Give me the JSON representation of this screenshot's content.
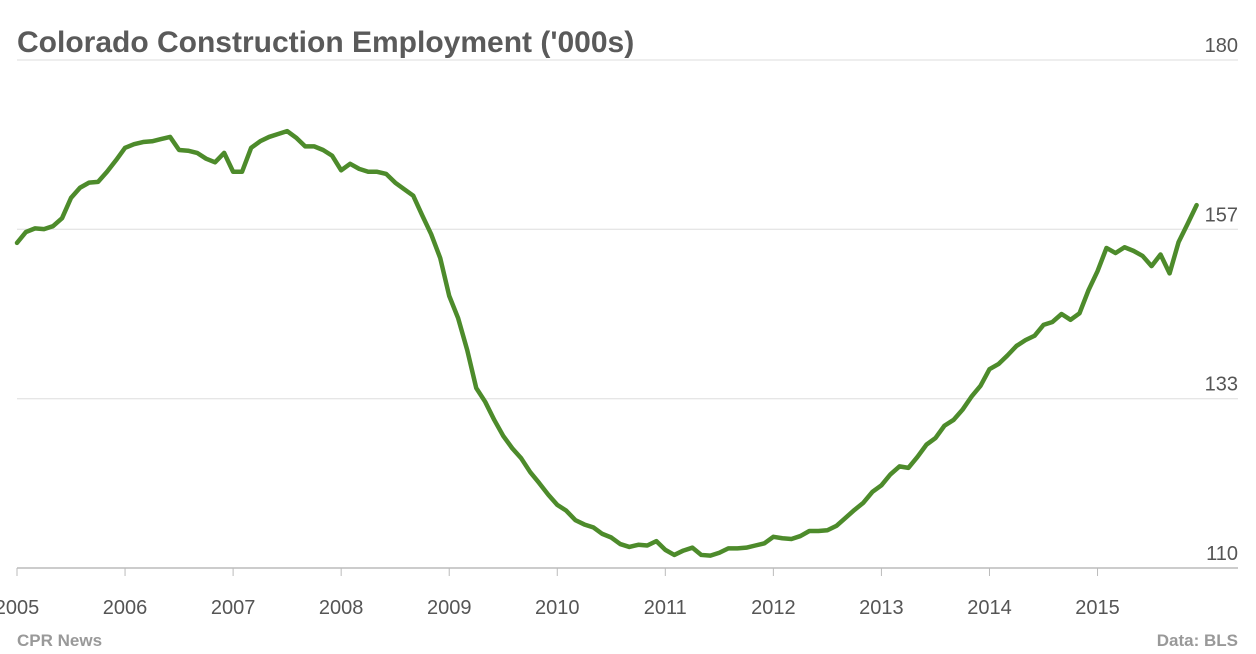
{
  "chart_data": {
    "type": "line",
    "title": "Colorado Construction Employment ('000s)",
    "source_left": "CPR News",
    "source_right": "Data: BLS",
    "x": [
      2005,
      2005.083,
      2005.167,
      2005.25,
      2005.333,
      2005.417,
      2005.5,
      2005.583,
      2005.667,
      2005.75,
      2005.833,
      2005.917,
      2006,
      2006.083,
      2006.167,
      2006.25,
      2006.333,
      2006.417,
      2006.5,
      2006.583,
      2006.667,
      2006.75,
      2006.833,
      2006.917,
      2007,
      2007.083,
      2007.167,
      2007.25,
      2007.333,
      2007.417,
      2007.5,
      2007.583,
      2007.667,
      2007.75,
      2007.833,
      2007.917,
      2008,
      2008.083,
      2008.167,
      2008.25,
      2008.333,
      2008.417,
      2008.5,
      2008.583,
      2008.667,
      2008.75,
      2008.833,
      2008.917,
      2009,
      2009.083,
      2009.167,
      2009.25,
      2009.333,
      2009.417,
      2009.5,
      2009.583,
      2009.667,
      2009.75,
      2009.833,
      2009.917,
      2010,
      2010.083,
      2010.167,
      2010.25,
      2010.333,
      2010.417,
      2010.5,
      2010.583,
      2010.667,
      2010.75,
      2010.833,
      2010.917,
      2011,
      2011.083,
      2011.167,
      2011.25,
      2011.333,
      2011.417,
      2011.5,
      2011.583,
      2011.667,
      2011.75,
      2011.833,
      2011.917,
      2012,
      2012.083,
      2012.167,
      2012.25,
      2012.333,
      2012.417,
      2012.5,
      2012.583,
      2012.667,
      2012.75,
      2012.833,
      2012.917,
      2013,
      2013.083,
      2013.167,
      2013.25,
      2013.333,
      2013.417,
      2013.5,
      2013.583,
      2013.667,
      2013.75,
      2013.833,
      2013.917,
      2014,
      2014.083,
      2014.167,
      2014.25,
      2014.333,
      2014.417,
      2014.5,
      2014.583,
      2014.667,
      2014.75,
      2014.833,
      2014.917,
      2015,
      2015.083,
      2015.167,
      2015.25,
      2015.333,
      2015.417,
      2015.5,
      2015.583,
      2015.667,
      2015.75,
      2015.833,
      2015.917
    ],
    "series": [
      {
        "name": "Construction employment",
        "color": "#4d8b2b",
        "values": [
          154.8,
          156.3,
          156.8,
          156.7,
          157.1,
          158.2,
          161.0,
          162.4,
          163.1,
          163.2,
          164.6,
          166.2,
          167.9,
          168.4,
          168.7,
          168.8,
          169.1,
          169.4,
          167.6,
          167.5,
          167.2,
          166.4,
          165.9,
          167.2,
          164.6,
          164.6,
          167.9,
          168.8,
          169.4,
          169.8,
          170.2,
          169.3,
          168.1,
          168.1,
          167.6,
          166.8,
          164.8,
          165.7,
          165.0,
          164.6,
          164.6,
          164.3,
          163.1,
          162.2,
          161.3,
          158.6,
          156.0,
          152.7,
          147.5,
          144.4,
          140.0,
          134.8,
          132.9,
          130.4,
          128.2,
          126.5,
          125.1,
          123.2,
          121.7,
          120.1,
          118.7,
          117.9,
          116.6,
          116.0,
          115.6,
          114.7,
          114.2,
          113.3,
          112.9,
          113.2,
          113.1,
          113.7,
          112.5,
          111.8,
          112.4,
          112.8,
          111.8,
          111.7,
          112.1,
          112.7,
          112.7,
          112.8,
          113.1,
          113.4,
          114.3,
          114.1,
          114.0,
          114.4,
          115.1,
          115.1,
          115.2,
          115.8,
          116.9,
          118.0,
          119.0,
          120.5,
          121.4,
          122.9,
          124.0,
          123.8,
          125.3,
          127.0,
          127.9,
          129.6,
          130.4,
          131.8,
          133.6,
          135.1,
          137.4,
          138.1,
          139.3,
          140.6,
          141.4,
          142.0,
          143.5,
          143.9,
          145.0,
          144.2,
          145.1,
          148.3,
          150.9,
          154.1,
          153.4,
          154.2,
          153.7,
          153.0,
          151.6,
          153.2,
          150.6,
          154.9,
          157.4,
          160.0
        ]
      }
    ],
    "xlim": [
      2005,
      2016.3
    ],
    "xticks": [
      2005,
      2006,
      2007,
      2008,
      2009,
      2010,
      2011,
      2012,
      2013,
      2014,
      2015
    ],
    "ylim": [
      110,
      180
    ],
    "yticks": [
      110,
      {
        "value": 133.33,
        "label": "133"
      },
      {
        "value": 156.67,
        "label": "157"
      },
      180
    ],
    "grid": true
  }
}
